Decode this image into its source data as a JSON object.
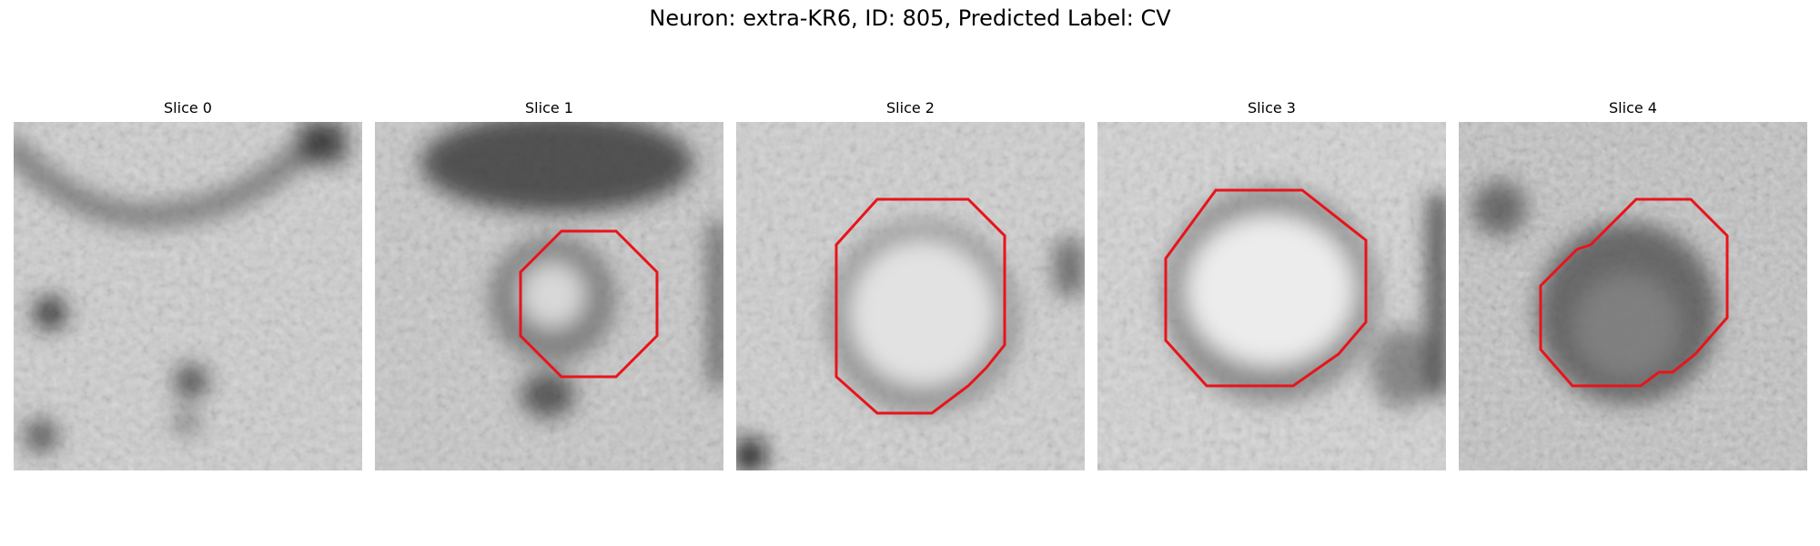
{
  "figure": {
    "title": "Neuron: extra-KR6, ID: 805, Predicted Label: CV"
  },
  "colors": {
    "contour": "#e8141b"
  },
  "panels": [
    {
      "title": "Slice 0"
    },
    {
      "title": "Slice 1"
    },
    {
      "title": "Slice 2"
    },
    {
      "title": "Slice 3"
    },
    {
      "title": "Slice 4"
    }
  ]
}
